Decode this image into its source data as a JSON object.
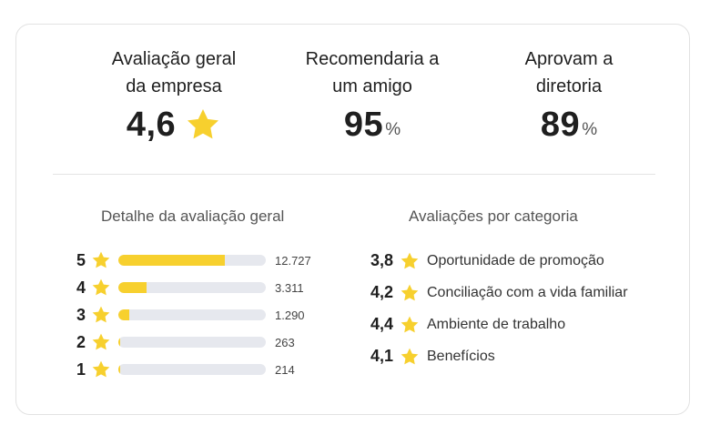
{
  "colors": {
    "star": "#f7d02e",
    "bar_track": "#e6e8ee"
  },
  "summary": [
    {
      "label_line1": "Avaliação geral",
      "label_line2": "da empresa",
      "value": "4,6",
      "suffix": "",
      "icon": "star-icon"
    },
    {
      "label_line1": "Recomendaria a",
      "label_line2": "um amigo",
      "value": "95",
      "suffix": "%"
    },
    {
      "label_line1": "Aprovam a",
      "label_line2": "diretoria",
      "value": "89",
      "suffix": "%"
    }
  ],
  "distribution": {
    "title": "Detalhe da avaliação geral",
    "rows": [
      {
        "stars": "5",
        "count": "12.727",
        "fraction": 0.72
      },
      {
        "stars": "4",
        "count": "3.311",
        "fraction": 0.19
      },
      {
        "stars": "3",
        "count": "1.290",
        "fraction": 0.075
      },
      {
        "stars": "2",
        "count": "263",
        "fraction": 0.015
      },
      {
        "stars": "1",
        "count": "214",
        "fraction": 0.013
      }
    ]
  },
  "categories": {
    "title": "Avaliações por categoria",
    "items": [
      {
        "score": "3,8",
        "label": "Oportunidade de promoção"
      },
      {
        "score": "4,2",
        "label": "Conciliação com a vida familiar"
      },
      {
        "score": "4,4",
        "label": "Ambiente de trabalho"
      },
      {
        "score": "4,1",
        "label": "Benefícios"
      }
    ]
  }
}
